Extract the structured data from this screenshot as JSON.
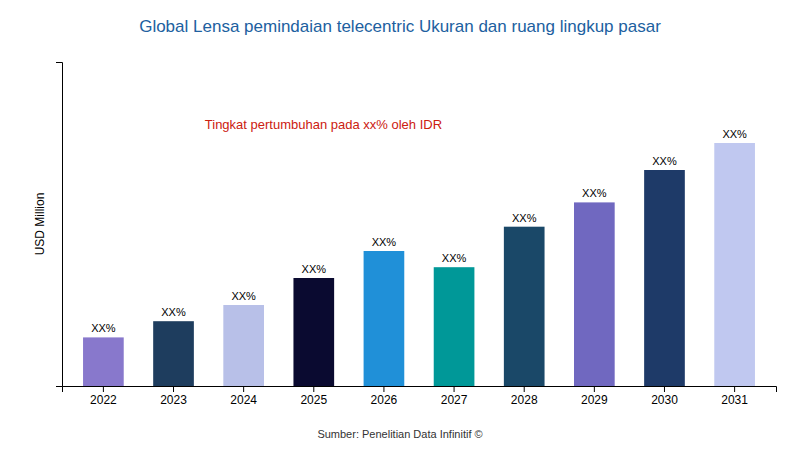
{
  "chart_data": {
    "type": "bar",
    "title": "Global Lensa pemindaian telecentric Ukuran dan ruang lingkup pasar",
    "subtitle": "Tingkat pertumbuhan pada xx% oleh IDR",
    "ylabel": "USD Million",
    "source": "Sumber: Penelitian Data Infinitif ©",
    "categories": [
      "2022",
      "2023",
      "2024",
      "2025",
      "2026",
      "2027",
      "2028",
      "2029",
      "2030",
      "2031"
    ],
    "values": [
      18,
      24,
      30,
      40,
      50,
      44,
      59,
      68,
      80,
      90
    ],
    "value_labels": [
      "XX%",
      "XX%",
      "XX%",
      "XX%",
      "XX%",
      "XX%",
      "XX%",
      "XX%",
      "XX%",
      "XX%"
    ],
    "colors": [
      "#8878cc",
      "#1e3d5e",
      "#b8c0e8",
      "#0a0a30",
      "#2090d8",
      "#009898",
      "#1a4868",
      "#7068c0",
      "#1e3a68",
      "#c0c8f0"
    ],
    "ylim": [
      0,
      120
    ],
    "yticks": [],
    "data_labels": true,
    "tick_labels": "x"
  }
}
